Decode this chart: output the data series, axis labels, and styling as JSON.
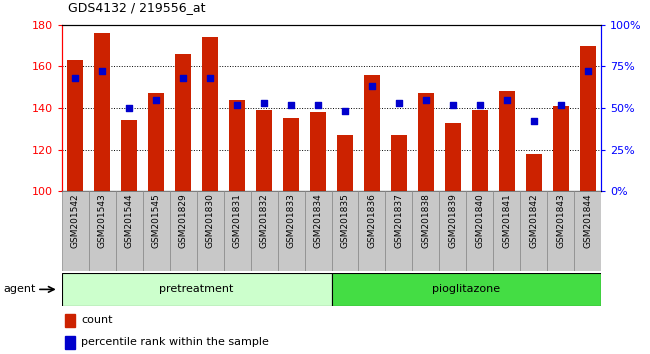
{
  "title": "GDS4132 / 219556_at",
  "categories": [
    "GSM201542",
    "GSM201543",
    "GSM201544",
    "GSM201545",
    "GSM201829",
    "GSM201830",
    "GSM201831",
    "GSM201832",
    "GSM201833",
    "GSM201834",
    "GSM201835",
    "GSM201836",
    "GSM201837",
    "GSM201838",
    "GSM201839",
    "GSM201840",
    "GSM201841",
    "GSM201842",
    "GSM201843",
    "GSM201844"
  ],
  "count_values": [
    163,
    176,
    134,
    147,
    166,
    174,
    144,
    139,
    135,
    138,
    127,
    156,
    127,
    147,
    133,
    139,
    148,
    118,
    141,
    170
  ],
  "percentile_values": [
    68,
    72,
    50,
    55,
    68,
    68,
    52,
    53,
    52,
    52,
    48,
    63,
    53,
    55,
    52,
    52,
    55,
    42,
    52,
    72
  ],
  "bar_color": "#CC2200",
  "dot_color": "#0000CC",
  "ylim_left": [
    100,
    180
  ],
  "ylim_right": [
    0,
    100
  ],
  "yticks_left": [
    100,
    120,
    140,
    160,
    180
  ],
  "yticks_right": [
    0,
    25,
    50,
    75,
    100
  ],
  "ytick_labels_right": [
    "0%",
    "25%",
    "50%",
    "75%",
    "100%"
  ],
  "pretreatment_label": "pretreatment",
  "pioglitazone_label": "pioglitazone",
  "n_pretreatment": 10,
  "n_pioglitazone": 10,
  "agent_label": "agent",
  "legend_count": "count",
  "legend_percentile": "percentile rank within the sample",
  "bar_width": 0.6,
  "pretreatment_bg": "#CCFFCC",
  "pioglitazone_bg": "#44DD44",
  "xtick_bg": "#C8C8C8",
  "xtick_border": "#888888"
}
